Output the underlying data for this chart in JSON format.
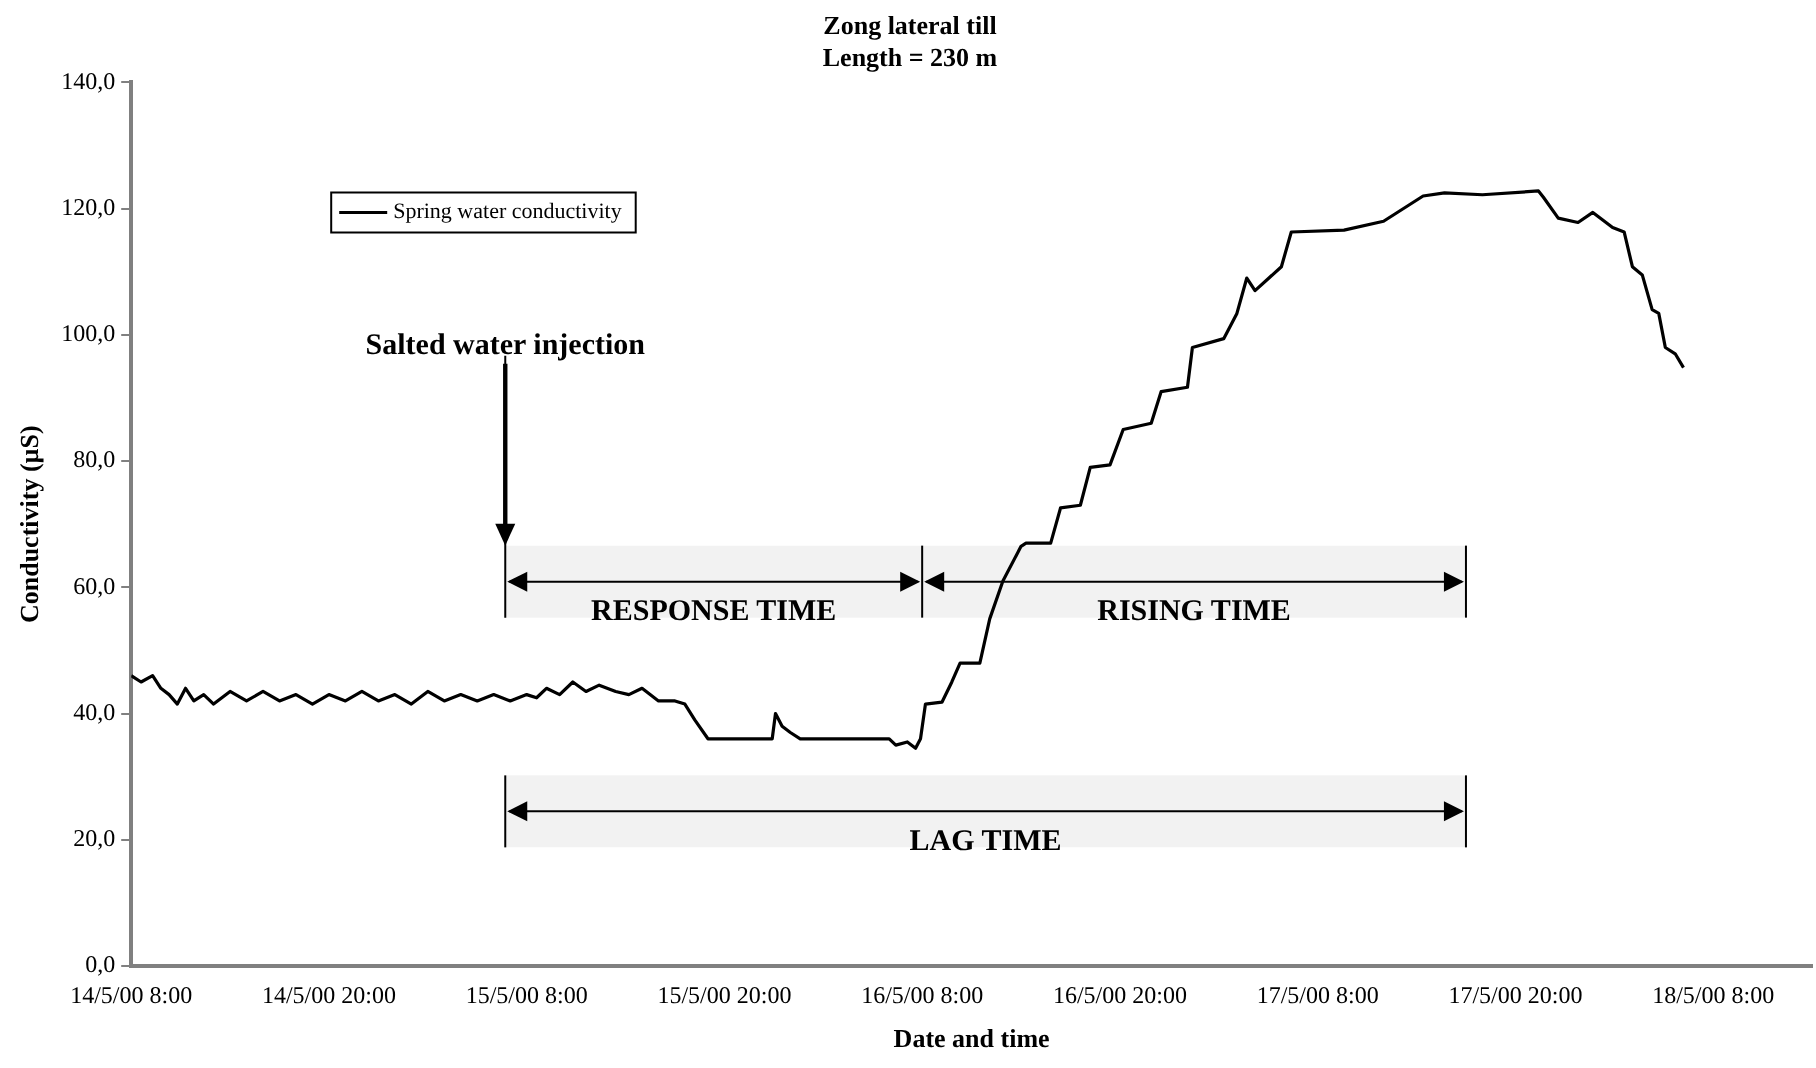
{
  "chart_data": {
    "type": "line",
    "title": "Zong lateral till",
    "subtitle": "Length = 230 m",
    "xlabel": "Date and time",
    "ylabel": "Conductivity (µS)",
    "xlim": [
      "2000-05-14T08:00",
      "2000-05-18T14:00"
    ],
    "xticks": [
      {
        "value": "2000-05-14T08:00",
        "label": "14/5/00 8:00"
      },
      {
        "value": "2000-05-14T20:00",
        "label": "14/5/00 20:00"
      },
      {
        "value": "2000-05-15T08:00",
        "label": "15/5/00 8:00"
      },
      {
        "value": "2000-05-15T20:00",
        "label": "15/5/00 20:00"
      },
      {
        "value": "2000-05-16T08:00",
        "label": "16/5/00 8:00"
      },
      {
        "value": "2000-05-16T20:00",
        "label": "16/5/00 20:00"
      },
      {
        "value": "2000-05-17T08:00",
        "label": "17/5/00 8:00"
      },
      {
        "value": "2000-05-17T20:00",
        "label": "17/5/00 20:00"
      },
      {
        "value": "2000-05-18T08:00",
        "label": "18/5/00 8:00"
      }
    ],
    "ylim": [
      0,
      140
    ],
    "yticks": [
      {
        "value": 0,
        "label": "0,0"
      },
      {
        "value": 20,
        "label": "20,0"
      },
      {
        "value": 40,
        "label": "40,0"
      },
      {
        "value": 60,
        "label": "60,0"
      },
      {
        "value": 80,
        "label": "80,0"
      },
      {
        "value": 100,
        "label": "100,0"
      },
      {
        "value": 120,
        "label": "120,0"
      },
      {
        "value": 140,
        "label": "140,0"
      }
    ],
    "series": [
      {
        "name": "Spring water conductivity",
        "color": "#000000",
        "x": [
          "2000-05-14T08:00",
          "2000-05-14T08:36",
          "2000-05-14T09:18",
          "2000-05-14T09:48",
          "2000-05-14T10:18",
          "2000-05-14T10:48",
          "2000-05-14T11:18",
          "2000-05-14T11:48",
          "2000-05-14T12:24",
          "2000-05-14T13:00",
          "2000-05-14T14:00",
          "2000-05-14T15:00",
          "2000-05-14T16:00",
          "2000-05-14T17:00",
          "2000-05-14T18:00",
          "2000-05-14T19:00",
          "2000-05-14T20:00",
          "2000-05-14T21:00",
          "2000-05-14T22:00",
          "2000-05-14T23:00",
          "2000-05-15T00:00",
          "2000-05-15T01:00",
          "2000-05-15T02:00",
          "2000-05-15T03:00",
          "2000-05-15T04:00",
          "2000-05-15T05:00",
          "2000-05-15T06:00",
          "2000-05-15T07:00",
          "2000-05-15T08:00",
          "2000-05-15T08:36",
          "2000-05-15T09:12",
          "2000-05-15T10:00",
          "2000-05-15T10:48",
          "2000-05-15T11:36",
          "2000-05-15T12:24",
          "2000-05-15T13:24",
          "2000-05-15T14:12",
          "2000-05-15T15:00",
          "2000-05-15T16:00",
          "2000-05-15T17:00",
          "2000-05-15T17:36",
          "2000-05-15T18:12",
          "2000-05-15T19:00",
          "2000-05-15T20:00",
          "2000-05-15T21:00",
          "2000-05-15T22:54",
          "2000-05-15T23:06",
          "2000-05-15T23:30",
          "2000-05-16T00:00",
          "2000-05-16T00:36",
          "2000-05-16T02:00",
          "2000-05-16T04:00",
          "2000-05-16T06:00",
          "2000-05-16T06:24",
          "2000-05-16T07:06",
          "2000-05-16T07:36",
          "2000-05-16T07:54",
          "2000-05-16T08:12",
          "2000-05-16T09:12",
          "2000-05-16T09:48",
          "2000-05-16T10:18",
          "2000-05-16T11:30",
          "2000-05-16T12:06",
          "2000-05-16T12:54",
          "2000-05-16T14:00",
          "2000-05-16T14:18",
          "2000-05-16T15:48",
          "2000-05-16T16:24",
          "2000-05-16T17:36",
          "2000-05-16T18:12",
          "2000-05-16T19:24",
          "2000-05-16T20:12",
          "2000-05-16T21:54",
          "2000-05-16T22:30",
          "2000-05-17T00:06",
          "2000-05-17T00:24",
          "2000-05-17T02:18",
          "2000-05-17T03:06",
          "2000-05-17T03:42",
          "2000-05-17T04:12",
          "2000-05-17T05:48",
          "2000-05-17T06:24",
          "2000-05-17T09:36",
          "2000-05-17T12:00",
          "2000-05-17T14:24",
          "2000-05-17T15:42",
          "2000-05-17T18:00",
          "2000-05-17T21:24",
          "2000-05-17T21:42",
          "2000-05-17T22:36",
          "2000-05-17T23:48",
          "2000-05-18T00:42",
          "2000-05-18T01:54",
          "2000-05-18T02:36",
          "2000-05-18T03:06",
          "2000-05-18T03:42",
          "2000-05-18T04:18",
          "2000-05-18T04:42",
          "2000-05-18T05:06",
          "2000-05-18T05:42",
          "2000-05-18T06:12"
        ],
        "values": [
          46,
          45,
          46,
          44,
          43,
          41.5,
          44,
          42,
          43,
          41.5,
          43.5,
          42,
          43.5,
          42,
          43,
          41.5,
          43,
          42,
          43.5,
          42,
          43,
          41.5,
          43.5,
          42,
          43,
          42,
          43,
          42,
          43,
          42.5,
          44,
          43,
          45,
          43.5,
          44.5,
          43.5,
          43,
          44,
          42,
          42,
          41.5,
          39,
          36,
          36,
          36,
          36,
          40,
          38,
          37,
          36,
          36,
          36,
          36,
          35,
          35.5,
          34.5,
          36,
          41.5,
          41.8,
          45,
          48,
          48,
          55,
          61,
          66.5,
          67,
          67,
          72.6,
          73,
          79,
          79.4,
          85,
          86,
          91,
          91.7,
          98,
          99.4,
          103.4,
          109,
          107,
          110.8,
          116.3,
          116.6,
          118,
          122,
          122.5,
          122.2,
          122.8,
          121.8,
          118.5,
          117.8,
          119.4,
          117,
          116.3,
          110.8,
          109.5,
          104,
          103.4,
          98,
          97,
          94.8
        ]
      }
    ],
    "ref_lines": [
      {
        "axis": "x",
        "value": "2000-05-15T06:42",
        "label": "Salted water injection"
      },
      {
        "axis": "x",
        "value": "2000-05-16T08:00",
        "label": null
      },
      {
        "axis": "x",
        "value": "2000-05-17T17:00",
        "label": null
      }
    ],
    "bands": [
      {
        "axis": "x",
        "from": "2000-05-15T06:42",
        "to": "2000-05-16T08:00",
        "label": "RESPONSE TIME"
      },
      {
        "axis": "x",
        "from": "2000-05-16T08:00",
        "to": "2000-05-17T17:00",
        "label": "RISING TIME"
      },
      {
        "axis": "x",
        "from": "2000-05-15T06:42",
        "to": "2000-05-17T17:00",
        "label": "LAG TIME"
      }
    ],
    "legend": "top left",
    "grid": false,
    "marker": "none",
    "line_style": "solid"
  }
}
